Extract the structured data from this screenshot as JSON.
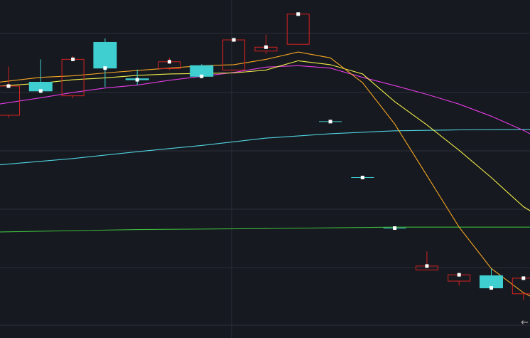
{
  "chart_data": {
    "type": "candlestick",
    "title": "",
    "xlabel": "",
    "ylabel": "",
    "grid": true,
    "colors": {
      "background": "#16191f",
      "grid": "#2c3038",
      "up": "#d42222",
      "down": "#3fcfd0",
      "ma5": "#f5a623",
      "ma10": "#f0ec4a",
      "ma20": "#e43ce4",
      "ma60": "#4fd3e0",
      "ma120": "#3dbb3d",
      "marker": "#ffffff"
    },
    "candles": [
      {
        "index": 0,
        "open": 110,
        "close": 170,
        "high": 210,
        "low": 105,
        "dir": "up"
      },
      {
        "index": 1,
        "open": 178,
        "close": 160,
        "high": 225,
        "low": 155,
        "dir": "down"
      },
      {
        "index": 2,
        "open": 150,
        "close": 225,
        "high": 232,
        "low": 145,
        "dir": "up"
      },
      {
        "index": 3,
        "open": 260,
        "close": 207,
        "high": 268,
        "low": 168,
        "dir": "down"
      },
      {
        "index": 4,
        "open": 185,
        "close": 183,
        "high": 204,
        "low": 172,
        "dir": "down"
      },
      {
        "index": 5,
        "open": 206,
        "close": 220,
        "high": 228,
        "low": 203,
        "dir": "up"
      },
      {
        "index": 6,
        "open": 212,
        "close": 190,
        "high": 215,
        "low": 188,
        "dir": "down"
      },
      {
        "index": 7,
        "open": 203,
        "close": 265,
        "high": 268,
        "low": 201,
        "dir": "up"
      },
      {
        "index": 8,
        "open": 242,
        "close": 250,
        "high": 276,
        "low": 236,
        "dir": "up"
      },
      {
        "index": 9,
        "open": 256,
        "close": 318,
        "high": 320,
        "low": 255,
        "dir": "up"
      },
      {
        "index": 10,
        "open": 97,
        "close": 97,
        "high": 97,
        "low": 97,
        "dir": "flat"
      },
      {
        "index": 11,
        "open": -18,
        "close": -18,
        "high": -18,
        "low": -18,
        "dir": "flat"
      },
      {
        "index": 12,
        "open": -122,
        "close": -122,
        "high": -122,
        "low": -122,
        "dir": "flat"
      },
      {
        "index": 13,
        "open": -208,
        "close": -200,
        "high": -170,
        "low": -208,
        "dir": "up"
      },
      {
        "index": 14,
        "open": -231,
        "close": -218,
        "high": -216,
        "low": -240,
        "dir": "up"
      },
      {
        "index": 15,
        "open": -220,
        "close": -245,
        "high": -205,
        "low": -245,
        "dir": "down"
      },
      {
        "index": 16,
        "open": -257,
        "close": -225,
        "high": -222,
        "low": -270,
        "dir": "up"
      }
    ],
    "ma5": [
      [
        -0.3,
        178
      ],
      [
        1,
        188
      ],
      [
        2,
        191
      ],
      [
        3,
        197
      ],
      [
        4,
        202
      ],
      [
        5,
        207
      ],
      [
        6,
        212
      ],
      [
        7,
        214
      ],
      [
        8,
        225
      ],
      [
        9,
        240
      ],
      [
        10,
        228
      ],
      [
        11,
        177
      ],
      [
        12,
        92
      ],
      [
        13,
        -14
      ],
      [
        14,
        -120
      ],
      [
        15,
        -205
      ],
      [
        16,
        -255
      ],
      [
        16.6,
        -275
      ]
    ],
    "ma10": [
      [
        -0.3,
        170
      ],
      [
        1,
        176
      ],
      [
        2,
        183
      ],
      [
        3,
        187
      ],
      [
        4,
        192
      ],
      [
        5,
        195
      ],
      [
        6,
        196
      ],
      [
        7,
        197
      ],
      [
        8,
        203
      ],
      [
        9,
        222
      ],
      [
        10,
        214
      ],
      [
        11,
        195
      ],
      [
        12,
        138
      ],
      [
        13,
        90
      ],
      [
        14,
        38
      ],
      [
        15,
        -18
      ],
      [
        16,
        -78
      ],
      [
        16.6,
        -102
      ]
    ],
    "ma20": [
      [
        -0.3,
        133
      ],
      [
        1,
        146
      ],
      [
        2,
        157
      ],
      [
        3,
        166
      ],
      [
        4,
        172
      ],
      [
        5,
        182
      ],
      [
        6,
        190
      ],
      [
        7,
        198
      ],
      [
        8,
        209
      ],
      [
        9,
        212
      ],
      [
        10,
        207
      ],
      [
        11,
        188
      ],
      [
        12,
        171
      ],
      [
        13,
        153
      ],
      [
        14,
        133
      ],
      [
        15,
        108
      ],
      [
        16,
        79
      ],
      [
        16.6,
        58
      ]
    ],
    "ma60": [
      [
        -0.3,
        8
      ],
      [
        2,
        21
      ],
      [
        4,
        35
      ],
      [
        6,
        48
      ],
      [
        8,
        63
      ],
      [
        10,
        72
      ],
      [
        12,
        78
      ],
      [
        14,
        80
      ],
      [
        16.6,
        81
      ]
    ],
    "ma120": [
      [
        -0.3,
        -130
      ],
      [
        4,
        -125
      ],
      [
        8,
        -123
      ],
      [
        12,
        -120
      ],
      [
        16.6,
        -120
      ]
    ],
    "ylim": [
      -348,
      347
    ]
  }
}
